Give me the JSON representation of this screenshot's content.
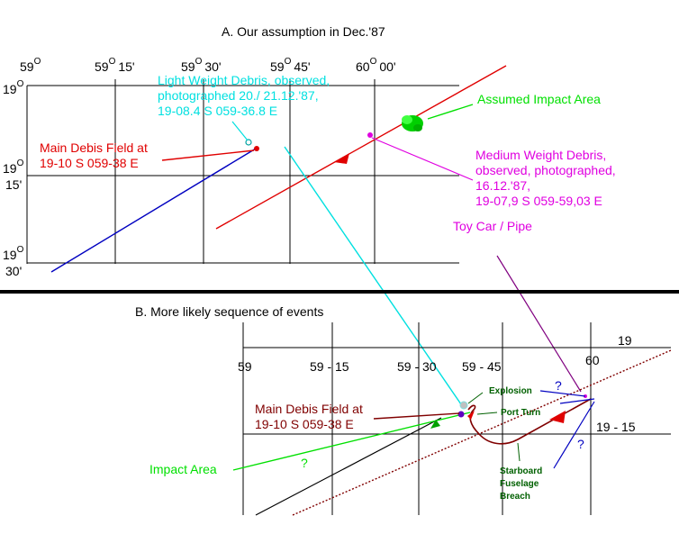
{
  "panel_a": {
    "title": "A. Our assumption in Dec.'87",
    "longitudes": [
      {
        "deg": "59",
        "sup": "O",
        "min": ""
      },
      {
        "deg": "59",
        "sup": "O",
        "min": "15'"
      },
      {
        "deg": "59",
        "sup": "O",
        "min": "30'"
      },
      {
        "deg": "59",
        "sup": "O",
        "min": "45'"
      },
      {
        "deg": "60",
        "sup": "O",
        "min": "00'"
      }
    ],
    "latitudes": [
      {
        "deg": "19",
        "sup": "O",
        "min": ""
      },
      {
        "deg": "19",
        "sup": "O",
        "min": "15'"
      },
      {
        "deg": "19",
        "sup": "O",
        "min": "30'"
      }
    ],
    "light_debris": [
      "Light Weight Debris, observed,",
      "photographed 20./ 21.12.'87,",
      "19-08.4 S 059-36.8 E"
    ],
    "main_field": [
      "Main Debis Field at",
      "19-10 S  059-38 E"
    ],
    "assumed_impact": "Assumed Impact Area",
    "medium_debris": [
      "Medium Weight Debris,",
      "observed, photographed,",
      "16.12.'87,",
      "19-07,9 S 059-59,03 E"
    ],
    "toy_car": "Toy Car  /  Pipe"
  },
  "panel_b": {
    "title": "B. More likely sequence of events",
    "longitudes": [
      "59",
      "59 - 15",
      "59 - 30",
      "59 - 45",
      "60"
    ],
    "latitudes": [
      "19",
      "19 - 15"
    ],
    "main_field": [
      "Main Debis Field at",
      "19-10 S  059-38 E"
    ],
    "impact_area": "Impact Area",
    "explosion": "Explosion",
    "port_turn": "Port Turn",
    "starboard": [
      "Starboard",
      "Fuselage",
      "Breach"
    ],
    "question_mark": "?"
  },
  "colors": {
    "red": "#e00000",
    "blue": "#0000c0",
    "cyan": "#00e0e0",
    "green": "#00e000",
    "magenta": "#e000e0",
    "dark_red": "#800000",
    "purple": "#800080"
  }
}
